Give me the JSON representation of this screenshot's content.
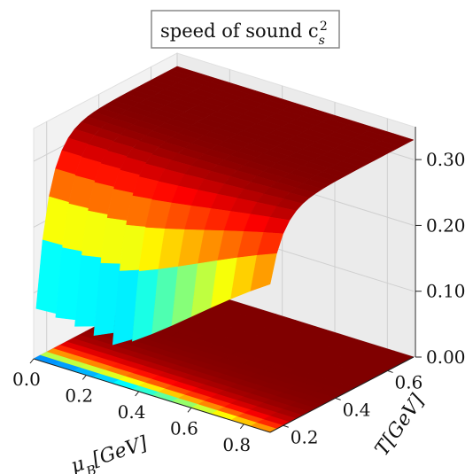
{
  "chart_data": {
    "type": "surface3d",
    "title": "speed of sound c_s^2",
    "title_parts": {
      "main": "speed of sound c",
      "sub": "s",
      "sup": "2"
    },
    "xlabel": "μB[GeV]",
    "xlabel_parts": {
      "sym": "μ",
      "sub": "B",
      "rest": "[GeV]"
    },
    "ylabel": "T[GeV]",
    "zlabel": "",
    "xlim": [
      0.0,
      0.9
    ],
    "ylim": [
      0.15,
      0.7
    ],
    "zlim": [
      0.0,
      0.35
    ],
    "xticks": [
      "0.0",
      "0.2",
      "0.4",
      "0.6",
      "0.8"
    ],
    "xtick_values": [
      0.0,
      0.2,
      0.4,
      0.6,
      0.8
    ],
    "yticks": [
      "0.2",
      "0.4",
      "0.6"
    ],
    "ytick_values": [
      0.2,
      0.4,
      0.6
    ],
    "zticks": [
      "0.00",
      "0.10",
      "0.20",
      "0.30"
    ],
    "ztick_values": [
      0.0,
      0.1,
      0.2,
      0.3
    ],
    "colormap": "jet",
    "grid": true,
    "surface": {
      "description": "c_s^2 rises steeply from ~0.05 near the lower T edge to a plateau ~0.33 at high T; T-edge shifts higher with μB",
      "model": "cs2 = 0.33*(1 - 0.85*exp(-(T - Tc(μB))/0.06)), Tc(μB) = 0.155*(1 - 0.35*(μB/0.9)^2)",
      "x_samples": 12,
      "y_samples": 22,
      "zmax_value": 0.33
    },
    "floor_contour": {
      "description": "filled contour projected on z=0 plane showing the same color bands"
    }
  }
}
